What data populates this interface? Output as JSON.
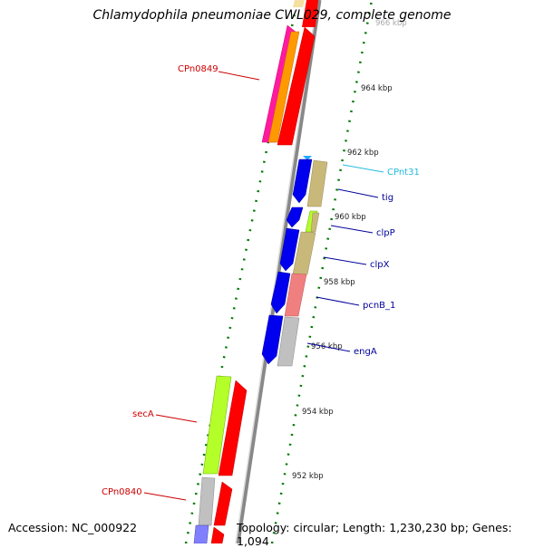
{
  "title": "Chlamydophila pneumoniae CWL029, complete genome",
  "footer": {
    "accession": "Accession: NC_000922",
    "summary": "Topology: circular; Length: 1,230,230 bp; Genes: 1,094"
  },
  "ticks": [
    "966 kbp",
    "964 kbp",
    "962 kbp",
    "960 kbp",
    "958 kbp",
    "956 kbp",
    "954 kbp",
    "952 kbp"
  ],
  "labels": [
    {
      "text": "CPn0849",
      "color": "#cc0000"
    },
    {
      "text": "CPnt31",
      "color": "#22bbdd"
    },
    {
      "text": "tig",
      "color": "#000099"
    },
    {
      "text": "clpP",
      "color": "#000099"
    },
    {
      "text": "clpX",
      "color": "#000099"
    },
    {
      "text": "pcnB_1",
      "color": "#000099"
    },
    {
      "text": "engA",
      "color": "#000099"
    },
    {
      "text": "secA",
      "color": "#cc0000"
    },
    {
      "text": "CPn0840",
      "color": "#cc0000"
    }
  ],
  "colors": {
    "red": "#ff0000",
    "blue": "#0000ee",
    "khaki": "#c8b97a",
    "salmon": "#f08080",
    "grey": "#c0c0c0",
    "lime": "#b4ff2a",
    "magenta": "#ff1aa0",
    "orange": "#ff9900",
    "purple": "#8080ff",
    "tick_green": "#007700",
    "backbone": "#888888"
  }
}
